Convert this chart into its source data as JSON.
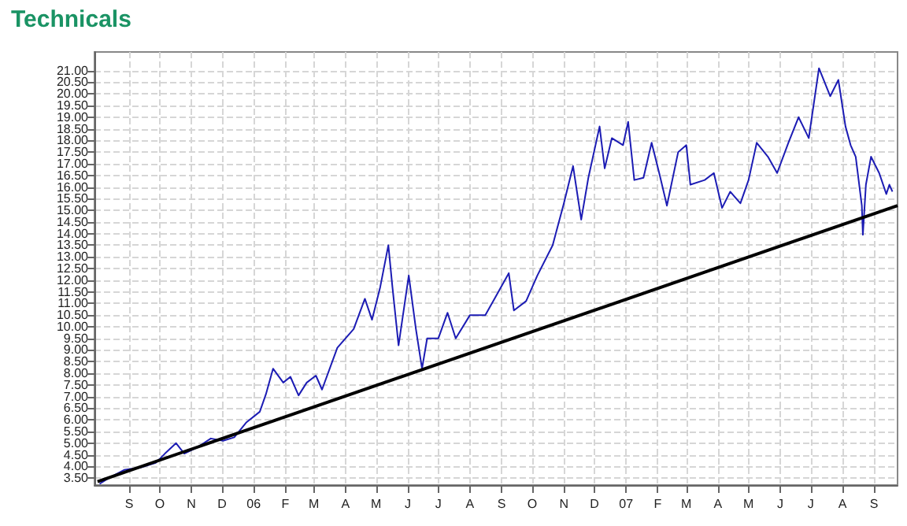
{
  "chart_data": {
    "type": "line",
    "title": "Technicals",
    "x": [
      "2005-08-03",
      "2005-08-12",
      "2005-08-27",
      "2005-09-12",
      "2005-09-27",
      "2005-10-06",
      "2005-10-17",
      "2005-10-25",
      "2005-11-06",
      "2005-11-20",
      "2005-12-02",
      "2005-12-13",
      "2005-12-25",
      "2006-01-07",
      "2006-01-13",
      "2006-01-20",
      "2006-01-30",
      "2006-02-06",
      "2006-02-14",
      "2006-02-22",
      "2006-03-03",
      "2006-03-09",
      "2006-03-24",
      "2006-04-09",
      "2006-04-20",
      "2006-04-27",
      "2006-05-05",
      "2006-05-13",
      "2006-05-17",
      "2006-05-23",
      "2006-06-02",
      "2006-06-09",
      "2006-06-15",
      "2006-06-20",
      "2006-07-01",
      "2006-07-10",
      "2006-07-18",
      "2006-08-01",
      "2006-08-16",
      "2006-08-25",
      "2006-09-08",
      "2006-09-13",
      "2006-09-25",
      "2006-10-06",
      "2006-10-21",
      "2006-11-01",
      "2006-11-10",
      "2006-11-18",
      "2006-11-25",
      "2006-12-06",
      "2006-12-11",
      "2006-12-18",
      "2006-12-29",
      "2007-01-03",
      "2007-01-09",
      "2007-01-18",
      "2007-01-26",
      "2007-02-03",
      "2007-02-10",
      "2007-02-21",
      "2007-03-01",
      "2007-03-05",
      "2007-03-19",
      "2007-03-28",
      "2007-04-05",
      "2007-04-13",
      "2007-04-23",
      "2007-05-01",
      "2007-05-09",
      "2007-05-20",
      "2007-05-29",
      "2007-06-09",
      "2007-06-19",
      "2007-06-29",
      "2007-07-09",
      "2007-07-20",
      "2007-07-28",
      "2007-08-04",
      "2007-08-09",
      "2007-08-14",
      "2007-08-20",
      "2007-08-21",
      "2007-08-24",
      "2007-08-29",
      "2007-09-06",
      "2007-09-13",
      "2007-09-16",
      "2007-09-19"
    ],
    "series": [
      {
        "type": "line",
        "color": "#1c1cb4",
        "values": [
          3.25,
          3.5,
          3.85,
          3.95,
          4.15,
          4.55,
          5.0,
          4.55,
          4.8,
          5.2,
          5.1,
          5.25,
          5.9,
          6.35,
          7.1,
          8.2,
          7.6,
          7.85,
          7.05,
          7.6,
          7.9,
          7.3,
          9.1,
          9.9,
          11.2,
          10.3,
          11.7,
          13.5,
          11.7,
          9.2,
          12.2,
          9.9,
          8.2,
          9.5,
          9.5,
          10.6,
          9.5,
          10.5,
          10.5,
          11.2,
          12.3,
          10.7,
          11.1,
          12.2,
          13.5,
          15.3,
          16.9,
          14.6,
          16.4,
          18.6,
          16.8,
          18.1,
          17.8,
          18.8,
          16.3,
          16.4,
          17.9,
          16.5,
          15.2,
          17.5,
          17.8,
          16.1,
          16.3,
          16.6,
          15.1,
          15.8,
          15.3,
          16.3,
          17.9,
          17.3,
          16.6,
          17.9,
          19.0,
          18.1,
          21.1,
          19.9,
          20.6,
          18.6,
          17.8,
          17.3,
          15.2,
          13.95,
          16.1,
          17.3,
          16.6,
          15.7,
          16.1,
          15.8
        ]
      },
      {
        "type": "line",
        "color": "#000000",
        "x": [
          "2005-08-01",
          "2007-09-24"
        ],
        "values": [
          3.35,
          15.2
        ]
      }
    ],
    "xlim": [
      "2005-07-29",
      "2007-09-24"
    ],
    "xticks": [
      {
        "value": "2005-09-01",
        "label": "S"
      },
      {
        "value": "2005-10-01",
        "label": "O"
      },
      {
        "value": "2005-11-01",
        "label": "N"
      },
      {
        "value": "2005-12-01",
        "label": "D"
      },
      {
        "value": "2006-01-01",
        "label": "06"
      },
      {
        "value": "2006-02-01",
        "label": "F"
      },
      {
        "value": "2006-03-01",
        "label": "M"
      },
      {
        "value": "2006-04-01",
        "label": "A"
      },
      {
        "value": "2006-05-01",
        "label": "M"
      },
      {
        "value": "2006-06-01",
        "label": "J"
      },
      {
        "value": "2006-07-01",
        "label": "J"
      },
      {
        "value": "2006-08-01",
        "label": "A"
      },
      {
        "value": "2006-09-01",
        "label": "S"
      },
      {
        "value": "2006-10-01",
        "label": "O"
      },
      {
        "value": "2006-11-01",
        "label": "N"
      },
      {
        "value": "2006-12-01",
        "label": "D"
      },
      {
        "value": "2007-01-01",
        "label": "07"
      },
      {
        "value": "2007-02-01",
        "label": "F"
      },
      {
        "value": "2007-03-01",
        "label": "M"
      },
      {
        "value": "2007-04-01",
        "label": "A"
      },
      {
        "value": "2007-05-01",
        "label": "M"
      },
      {
        "value": "2007-06-01",
        "label": "J"
      },
      {
        "value": "2007-07-01",
        "label": "J"
      },
      {
        "value": "2007-08-01",
        "label": "A"
      },
      {
        "value": "2007-09-01",
        "label": "S"
      }
    ],
    "ylim": [
      3.2,
      21.8
    ],
    "yticks": [
      {
        "value": 3.5,
        "label": "3.50"
      },
      {
        "value": 4,
        "label": "4.00"
      },
      {
        "value": 4.5,
        "label": "4.50"
      },
      {
        "value": 5,
        "label": "5.00"
      },
      {
        "value": 5.5,
        "label": "5.50"
      },
      {
        "value": 6,
        "label": "6.00"
      },
      {
        "value": 6.5,
        "label": "6.50"
      },
      {
        "value": 7,
        "label": "7.00"
      },
      {
        "value": 7.5,
        "label": "7.50"
      },
      {
        "value": 8,
        "label": "8.00"
      },
      {
        "value": 8.5,
        "label": "8.50"
      },
      {
        "value": 9,
        "label": "9.00"
      },
      {
        "value": 9.5,
        "label": "9.50"
      },
      {
        "value": 10,
        "label": "10.00"
      },
      {
        "value": 10.5,
        "label": "10.50"
      },
      {
        "value": 11,
        "label": "11.00"
      },
      {
        "value": 11.5,
        "label": "11.50"
      },
      {
        "value": 12,
        "label": "12.00"
      },
      {
        "value": 12.5,
        "label": "12.50"
      },
      {
        "value": 13,
        "label": "13.00"
      },
      {
        "value": 13.5,
        "label": "13.50"
      },
      {
        "value": 14,
        "label": "14.00"
      },
      {
        "value": 14.5,
        "label": "14.50"
      },
      {
        "value": 15,
        "label": "15.00"
      },
      {
        "value": 15.5,
        "label": "15.50"
      },
      {
        "value": 16,
        "label": "16.00"
      },
      {
        "value": 16.5,
        "label": "16.50"
      },
      {
        "value": 17,
        "label": "17.00"
      },
      {
        "value": 17.5,
        "label": "17.50"
      },
      {
        "value": 18,
        "label": "18.00"
      },
      {
        "value": 18.5,
        "label": "18.50"
      },
      {
        "value": 19,
        "label": "19.00"
      },
      {
        "value": 19.5,
        "label": "19.50"
      },
      {
        "value": 20,
        "label": "20.00"
      },
      {
        "value": 20.5,
        "label": "20.50"
      },
      {
        "value": 21,
        "label": "21.00"
      }
    ],
    "grid": true
  }
}
